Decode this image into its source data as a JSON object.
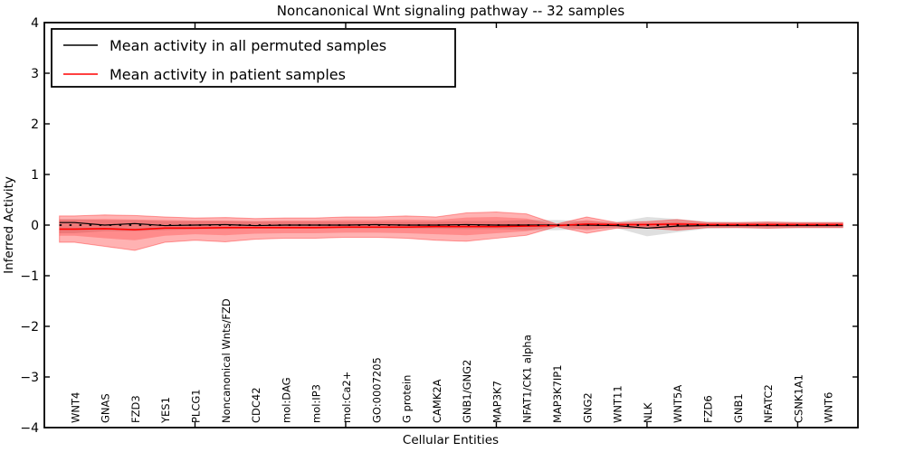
{
  "figure": {
    "title": "Noncanonical Wnt signaling pathway -- 32 samples",
    "xlabel": "Cellular Entities",
    "ylabel": "Inferred Activity"
  },
  "legend": {
    "entries": [
      {
        "label": "Mean activity in all permuted samples",
        "color": "#000000"
      },
      {
        "label": "Mean activity in patient samples",
        "color": "#ff0000"
      }
    ]
  },
  "chart_data": {
    "type": "line",
    "title": "Noncanonical Wnt signaling pathway -- 32 samples",
    "xlabel": "Cellular Entities",
    "ylabel": "Inferred Activity",
    "ylim": [
      -4,
      4
    ],
    "xlim": [
      0,
      27
    ],
    "grid": false,
    "legend_position": "upper left",
    "ytick_labels": [
      "4",
      "3",
      "2",
      "1",
      "0",
      "−1",
      "−2",
      "−3",
      "−4"
    ],
    "ytick_values": [
      4,
      3,
      2,
      1,
      0,
      -1,
      -2,
      -3,
      -4
    ],
    "xtick_values": [
      5,
      10,
      15,
      20,
      25
    ],
    "categories": [
      "WNT4",
      "GNAS",
      "FZD3",
      "YES1",
      "PLCG1",
      "Noncanonical Wnts/FZD",
      "CDC42",
      "mol:DAG",
      "mol:IP3",
      "mol:Ca2+",
      "GO:0007205",
      "G protein",
      "CAMK2A",
      "GNB1/GNG2",
      "MAP3K7",
      "NFAT1/CK1 alpha",
      "MAP3K7IP1",
      "GNG2",
      "WNT11",
      "NLK",
      "WNT5A",
      "FZD6",
      "GNB1",
      "NFATC2",
      "CSNK1A1",
      "WNT6"
    ],
    "zero_line": {
      "y": 0,
      "style": "dotted",
      "color": "#000000"
    },
    "series": [
      {
        "name": "Mean activity in all permuted samples",
        "color": "#000000",
        "width": 1.2,
        "values": [
          0.05,
          0.0,
          0.03,
          -0.01,
          0.0,
          0.01,
          -0.01,
          0.0,
          0.0,
          0.0,
          0.01,
          0.0,
          0.0,
          0.01,
          0.0,
          0.0,
          0.0,
          0.0,
          -0.01,
          -0.06,
          -0.02,
          -0.01,
          -0.01,
          -0.01,
          -0.01,
          -0.01
        ]
      },
      {
        "name": "Mean activity in patient samples",
        "color": "#ff0000",
        "width": 1.6,
        "values": [
          -0.08,
          -0.07,
          -0.09,
          -0.06,
          -0.06,
          -0.05,
          -0.05,
          -0.05,
          -0.05,
          -0.04,
          -0.04,
          -0.04,
          -0.03,
          -0.03,
          -0.03,
          -0.02,
          -0.01,
          0.02,
          0.01,
          0.01,
          0.02,
          0.01,
          0.01,
          0.01,
          0.01,
          0.01
        ]
      }
    ],
    "bands": [
      {
        "name": "permuted-samples-std-band",
        "color": "rgba(110,110,110,0.22)",
        "top": [
          0.12,
          0.1,
          0.1,
          0.08,
          0.08,
          0.08,
          0.07,
          0.07,
          0.07,
          0.07,
          0.07,
          0.07,
          0.07,
          0.08,
          0.08,
          0.1,
          0.1,
          0.08,
          0.06,
          0.16,
          0.12,
          0.07,
          0.06,
          0.07,
          0.06,
          0.06
        ],
        "bottom": [
          -0.16,
          -0.12,
          -0.12,
          -0.1,
          -0.08,
          -0.08,
          -0.07,
          -0.07,
          -0.07,
          -0.07,
          -0.07,
          -0.07,
          -0.07,
          -0.08,
          -0.08,
          -0.1,
          -0.1,
          -0.08,
          -0.06,
          -0.22,
          -0.14,
          -0.07,
          -0.06,
          -0.07,
          -0.06,
          -0.06
        ]
      },
      {
        "name": "patient-samples-std-band-outer",
        "color": "rgba(255,0,0,0.30)",
        "top": [
          0.18,
          0.2,
          0.19,
          0.16,
          0.14,
          0.15,
          0.13,
          0.14,
          0.14,
          0.16,
          0.16,
          0.18,
          0.16,
          0.24,
          0.26,
          0.22,
          0.02,
          0.16,
          0.05,
          0.07,
          0.11,
          0.05,
          0.05,
          0.06,
          0.05,
          0.05
        ],
        "bottom": [
          -0.34,
          -0.42,
          -0.5,
          -0.34,
          -0.3,
          -0.33,
          -0.28,
          -0.26,
          -0.26,
          -0.24,
          -0.24,
          -0.26,
          -0.3,
          -0.32,
          -0.26,
          -0.2,
          -0.03,
          -0.16,
          -0.06,
          -0.06,
          -0.1,
          -0.05,
          -0.05,
          -0.06,
          -0.05,
          -0.05
        ],
        "edge_color": "rgba(255,0,0,0.35)"
      },
      {
        "name": "patient-samples-std-band-inner",
        "color": "rgba(255,0,0,0.22)",
        "top": [
          0.11,
          0.12,
          0.11,
          0.1,
          0.09,
          0.09,
          0.08,
          0.09,
          0.09,
          0.1,
          0.1,
          0.11,
          0.1,
          0.15,
          0.16,
          0.13,
          0.01,
          0.1,
          0.03,
          0.04,
          0.07,
          0.03,
          0.03,
          0.04,
          0.03,
          0.03
        ],
        "bottom": [
          -0.21,
          -0.26,
          -0.3,
          -0.21,
          -0.18,
          -0.2,
          -0.17,
          -0.16,
          -0.16,
          -0.15,
          -0.15,
          -0.16,
          -0.18,
          -0.2,
          -0.16,
          -0.12,
          -0.02,
          -0.1,
          -0.04,
          -0.04,
          -0.06,
          -0.03,
          -0.03,
          -0.04,
          -0.03,
          -0.03
        ]
      }
    ]
  }
}
